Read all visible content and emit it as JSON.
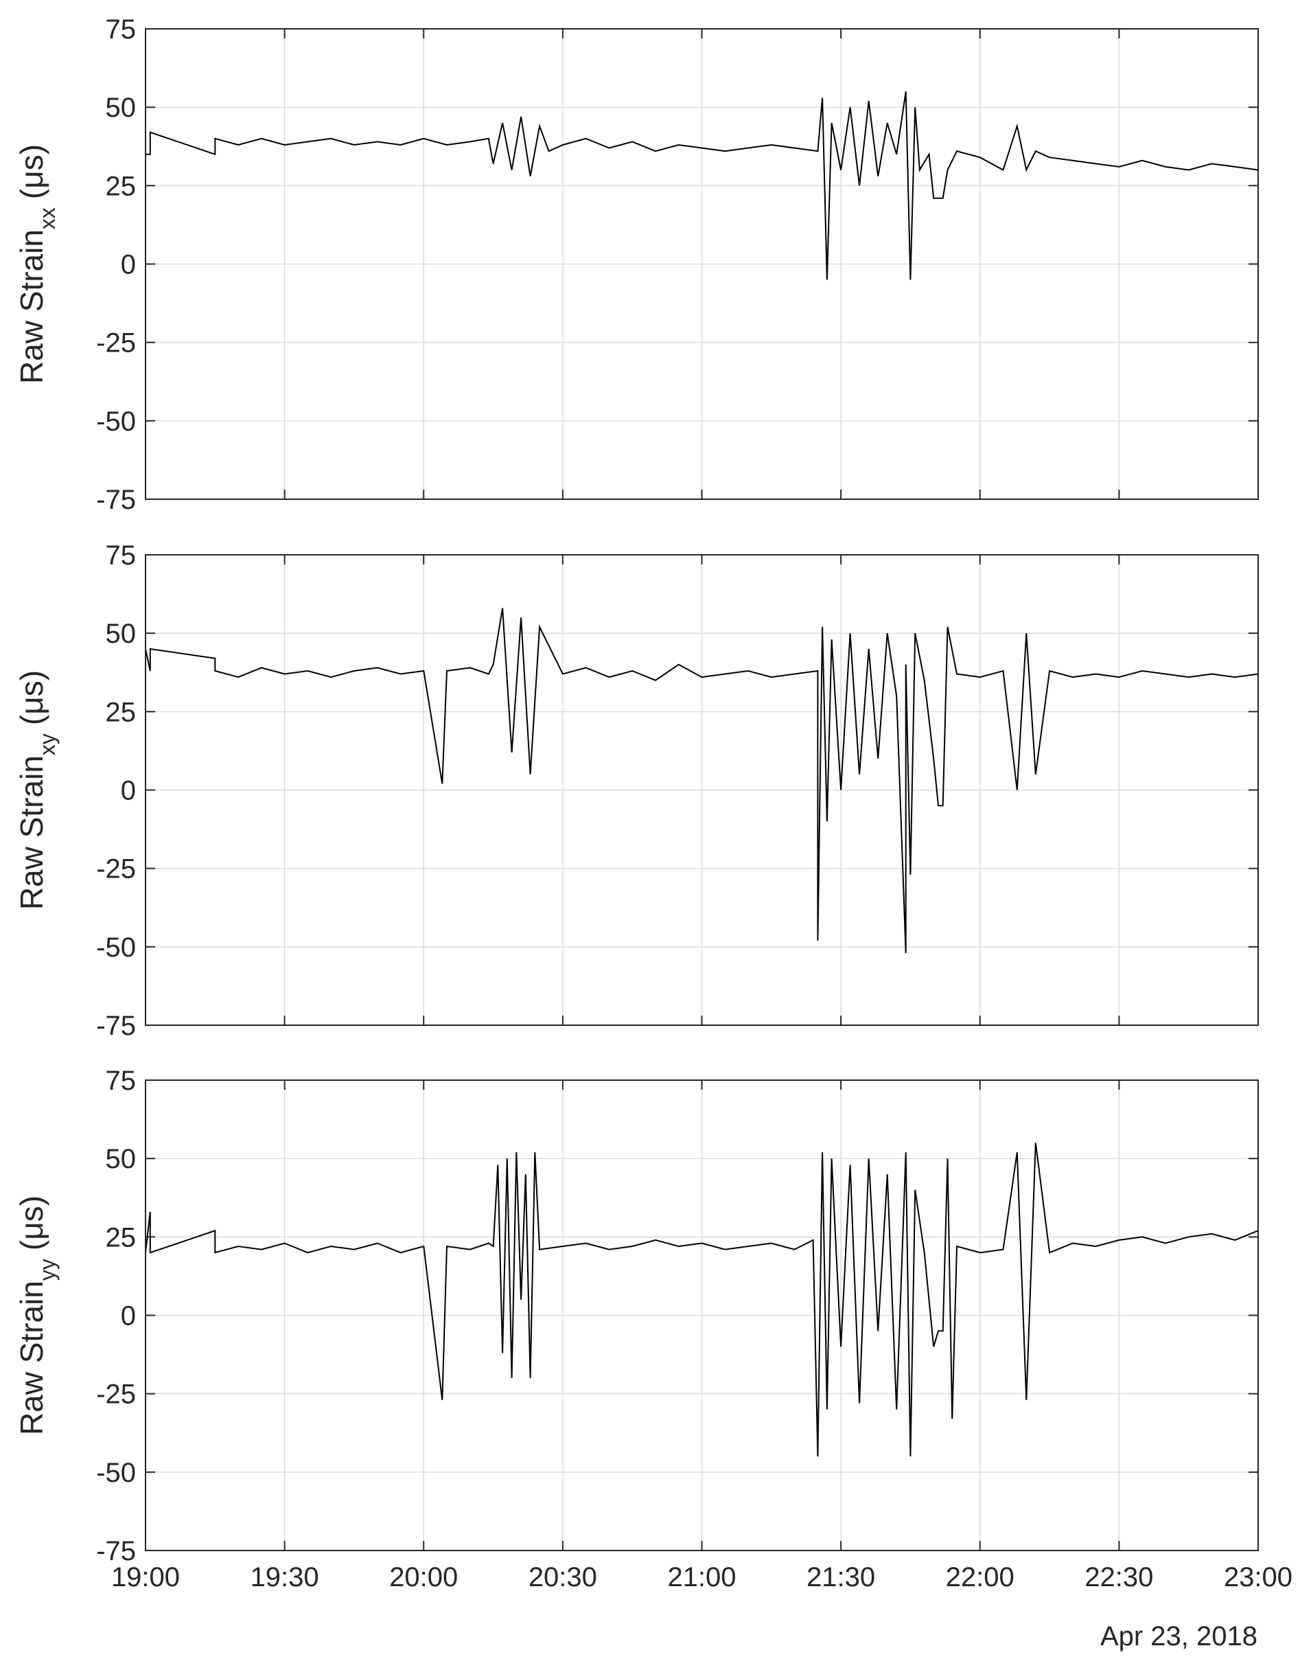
{
  "chart_data": [
    {
      "type": "line",
      "ylabel_main": "Raw Strain",
      "ylabel_sub": "xx",
      "ylabel_unit": "(μs)",
      "ylim": [
        -75,
        75
      ],
      "yticks": [
        75,
        50,
        25,
        0,
        -25,
        -50,
        -75
      ],
      "grid": true,
      "series": [
        {
          "color": "#000000",
          "x": [
            "19:00",
            "19:01",
            "19:01",
            "19:15",
            "19:15",
            "19:20",
            "19:25",
            "19:30",
            "19:35",
            "19:40",
            "19:45",
            "19:50",
            "19:55",
            "20:00",
            "20:05",
            "20:10",
            "20:14",
            "20:15",
            "20:17",
            "20:19",
            "20:21",
            "20:23",
            "20:25",
            "20:27",
            "20:30",
            "20:35",
            "20:40",
            "20:45",
            "20:50",
            "20:55",
            "21:00",
            "21:05",
            "21:10",
            "21:15",
            "21:20",
            "21:25",
            "21:26",
            "21:27",
            "21:28",
            "21:30",
            "21:32",
            "21:34",
            "21:36",
            "21:38",
            "21:40",
            "21:42",
            "21:44",
            "21:45",
            "21:46",
            "21:47",
            "21:49",
            "21:50",
            "21:52",
            "21:53",
            "21:55",
            "22:00",
            "22:05",
            "22:08",
            "22:10",
            "22:12",
            "22:15",
            "22:20",
            "22:25",
            "22:30",
            "22:35",
            "22:40",
            "22:45",
            "22:50",
            "22:55",
            "23:00"
          ],
          "y": [
            35,
            35,
            42,
            35,
            40,
            38,
            40,
            38,
            39,
            40,
            38,
            39,
            38,
            40,
            38,
            39,
            40,
            32,
            45,
            30,
            47,
            28,
            44,
            36,
            38,
            40,
            37,
            39,
            36,
            38,
            37,
            36,
            37,
            38,
            37,
            36,
            53,
            -5,
            45,
            30,
            50,
            25,
            52,
            28,
            45,
            35,
            55,
            -5,
            50,
            30,
            35,
            21,
            21,
            30,
            36,
            34,
            30,
            44,
            30,
            36,
            34,
            33,
            32,
            31,
            33,
            31,
            30,
            32,
            31,
            30
          ]
        }
      ]
    },
    {
      "type": "line",
      "ylabel_main": "Raw Strain",
      "ylabel_sub": "xy",
      "ylabel_unit": "(μs)",
      "ylim": [
        -75,
        75
      ],
      "yticks": [
        75,
        50,
        25,
        0,
        -25,
        -50,
        -75
      ],
      "grid": true,
      "series": [
        {
          "color": "#000000",
          "x": [
            "19:00",
            "19:01",
            "19:01",
            "19:15",
            "19:15",
            "19:20",
            "19:25",
            "19:30",
            "19:35",
            "19:40",
            "19:45",
            "19:50",
            "19:55",
            "20:00",
            "20:04",
            "20:05",
            "20:10",
            "20:14",
            "20:15",
            "20:17",
            "20:19",
            "20:21",
            "20:23",
            "20:25",
            "20:30",
            "20:35",
            "20:40",
            "20:45",
            "20:50",
            "20:55",
            "21:00",
            "21:05",
            "21:10",
            "21:15",
            "21:20",
            "21:25",
            "21:25",
            "21:26",
            "21:27",
            "21:28",
            "21:30",
            "21:32",
            "21:34",
            "21:36",
            "21:38",
            "21:40",
            "21:42",
            "21:44",
            "21:44",
            "21:45",
            "21:46",
            "21:48",
            "21:50",
            "21:51",
            "21:52",
            "21:53",
            "21:55",
            "22:00",
            "22:05",
            "22:08",
            "22:10",
            "22:12",
            "22:15",
            "22:20",
            "22:25",
            "22:30",
            "22:35",
            "22:40",
            "22:45",
            "22:50",
            "22:55",
            "23:00"
          ],
          "y": [
            45,
            38,
            45,
            42,
            38,
            36,
            39,
            37,
            38,
            36,
            38,
            39,
            37,
            38,
            2,
            38,
            39,
            37,
            40,
            58,
            12,
            55,
            5,
            52,
            37,
            39,
            36,
            38,
            35,
            40,
            36,
            37,
            38,
            36,
            37,
            38,
            -48,
            52,
            -10,
            48,
            0,
            50,
            5,
            45,
            10,
            50,
            30,
            -52,
            40,
            -27,
            50,
            35,
            10,
            -5,
            -5,
            52,
            37,
            36,
            38,
            0,
            50,
            5,
            38,
            36,
            37,
            36,
            38,
            37,
            36,
            37,
            36,
            37
          ]
        }
      ]
    },
    {
      "type": "line",
      "ylabel_main": "Raw Strain",
      "ylabel_sub": "yy",
      "ylabel_unit": "(μs)",
      "ylim": [
        -75,
        75
      ],
      "yticks": [
        75,
        50,
        25,
        0,
        -25,
        -50,
        -75
      ],
      "grid": true,
      "series": [
        {
          "color": "#000000",
          "x": [
            "19:00",
            "19:01",
            "19:01",
            "19:15",
            "19:15",
            "19:20",
            "19:25",
            "19:30",
            "19:35",
            "19:40",
            "19:45",
            "19:50",
            "19:55",
            "20:00",
            "20:04",
            "20:05",
            "20:10",
            "20:14",
            "20:15",
            "20:16",
            "20:17",
            "20:18",
            "20:19",
            "20:20",
            "20:21",
            "20:22",
            "20:23",
            "20:24",
            "20:25",
            "20:30",
            "20:35",
            "20:40",
            "20:45",
            "20:50",
            "20:55",
            "21:00",
            "21:05",
            "21:10",
            "21:15",
            "21:20",
            "21:24",
            "21:25",
            "21:26",
            "21:27",
            "21:28",
            "21:30",
            "21:32",
            "21:34",
            "21:36",
            "21:38",
            "21:40",
            "21:42",
            "21:44",
            "21:45",
            "21:46",
            "21:48",
            "21:50",
            "21:51",
            "21:52",
            "21:53",
            "21:54",
            "21:55",
            "22:00",
            "22:05",
            "22:08",
            "22:10",
            "22:12",
            "22:15",
            "22:20",
            "22:25",
            "22:30",
            "22:35",
            "22:40",
            "22:45",
            "22:50",
            "22:55",
            "23:00"
          ],
          "y": [
            20,
            33,
            20,
            27,
            20,
            22,
            21,
            23,
            20,
            22,
            21,
            23,
            20,
            22,
            -27,
            22,
            21,
            23,
            22,
            48,
            -12,
            50,
            -20,
            52,
            5,
            45,
            -20,
            52,
            21,
            22,
            23,
            21,
            22,
            24,
            22,
            23,
            21,
            22,
            23,
            21,
            24,
            -45,
            52,
            -30,
            50,
            -10,
            48,
            -28,
            50,
            -5,
            45,
            -30,
            52,
            -45,
            40,
            20,
            -10,
            -5,
            -5,
            50,
            -33,
            22,
            20,
            21,
            52,
            -27,
            55,
            20,
            23,
            22,
            24,
            25,
            23,
            25,
            26,
            24,
            27
          ]
        }
      ]
    }
  ],
  "x_axis": {
    "start": "19:00",
    "end": "23:00",
    "tick_labels": [
      "19:00",
      "19:30",
      "20:00",
      "20:30",
      "21:00",
      "21:30",
      "22:00",
      "22:30",
      "23:00"
    ]
  },
  "date_label": "Apr 23, 2018"
}
